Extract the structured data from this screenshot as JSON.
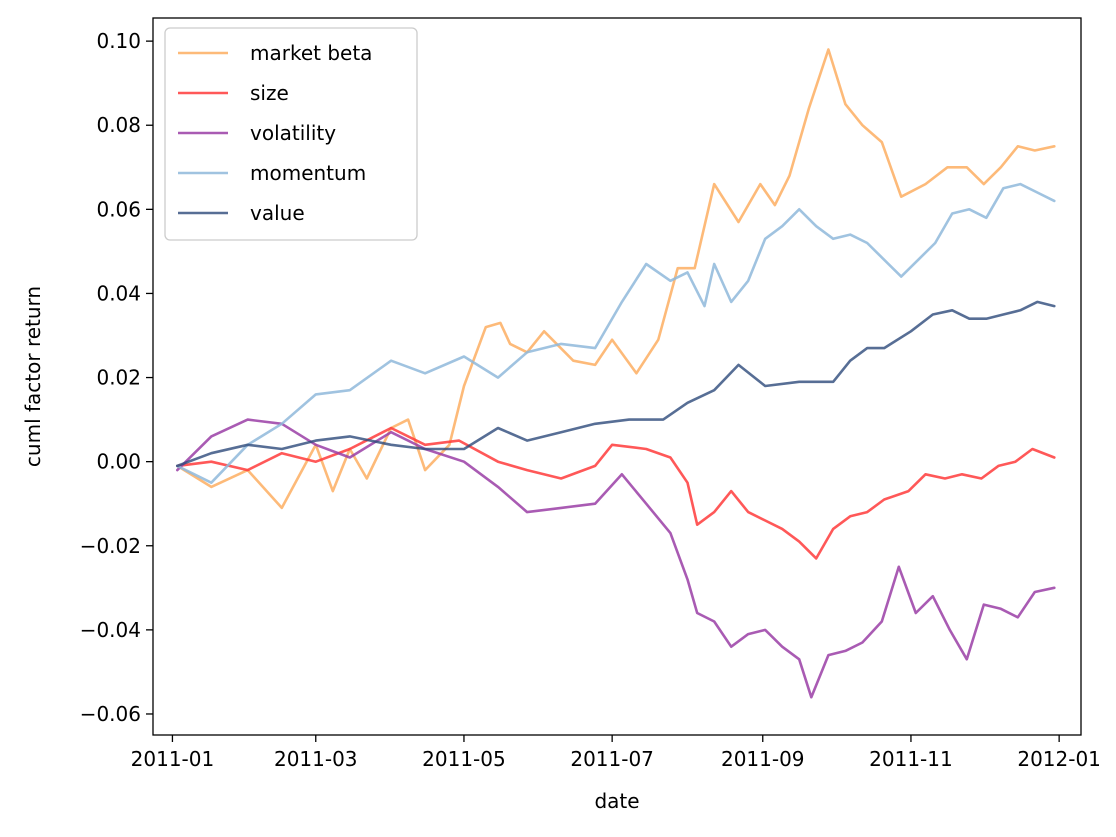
{
  "chart_data": {
    "type": "line",
    "title": "",
    "xlabel": "date",
    "ylabel": "cuml factor return",
    "xlim": [
      "2010-12-24",
      "2012-01-10"
    ],
    "ylim": [
      -0.065,
      0.1055
    ],
    "x_ticks": [
      "2011-01",
      "2011-03",
      "2011-05",
      "2011-07",
      "2011-09",
      "2011-11",
      "2012-01"
    ],
    "y_ticks": [
      -0.06,
      -0.04,
      -0.02,
      0.0,
      0.02,
      0.04,
      0.06,
      0.08,
      0.1
    ],
    "y_tick_labels": [
      "−0.06",
      "−0.04",
      "−0.02",
      "0.00",
      "0.02",
      "0.04",
      "0.06",
      "0.08",
      "0.10"
    ],
    "legend_position": "upper-left",
    "series": [
      {
        "name": "market beta",
        "color": "#fdae61",
        "opacity": 0.85,
        "points": [
          [
            "2011-01-03",
            -0.001
          ],
          [
            "2011-01-17",
            -0.006
          ],
          [
            "2011-02-01",
            -0.002
          ],
          [
            "2011-02-15",
            -0.011
          ],
          [
            "2011-03-01",
            0.004
          ],
          [
            "2011-03-08",
            -0.007
          ],
          [
            "2011-03-15",
            0.003
          ],
          [
            "2011-03-22",
            -0.004
          ],
          [
            "2011-04-01",
            0.008
          ],
          [
            "2011-04-08",
            0.01
          ],
          [
            "2011-04-15",
            -0.002
          ],
          [
            "2011-04-25",
            0.004
          ],
          [
            "2011-05-01",
            0.018
          ],
          [
            "2011-05-10",
            0.032
          ],
          [
            "2011-05-16",
            0.033
          ],
          [
            "2011-05-20",
            0.028
          ],
          [
            "2011-05-27",
            0.026
          ],
          [
            "2011-06-03",
            0.031
          ],
          [
            "2011-06-15",
            0.024
          ],
          [
            "2011-06-24",
            0.023
          ],
          [
            "2011-07-01",
            0.029
          ],
          [
            "2011-07-11",
            0.021
          ],
          [
            "2011-07-20",
            0.029
          ],
          [
            "2011-07-28",
            0.046
          ],
          [
            "2011-08-04",
            0.046
          ],
          [
            "2011-08-12",
            0.066
          ],
          [
            "2011-08-22",
            0.057
          ],
          [
            "2011-08-31",
            0.066
          ],
          [
            "2011-09-06",
            0.061
          ],
          [
            "2011-09-12",
            0.068
          ],
          [
            "2011-09-20",
            0.084
          ],
          [
            "2011-09-28",
            0.098
          ],
          [
            "2011-10-05",
            0.085
          ],
          [
            "2011-10-12",
            0.08
          ],
          [
            "2011-10-20",
            0.076
          ],
          [
            "2011-10-28",
            0.063
          ],
          [
            "2011-11-07",
            0.066
          ],
          [
            "2011-11-16",
            0.07
          ],
          [
            "2011-11-24",
            0.07
          ],
          [
            "2011-12-01",
            0.066
          ],
          [
            "2011-12-08",
            0.07
          ],
          [
            "2011-12-15",
            0.075
          ],
          [
            "2011-12-22",
            0.074
          ],
          [
            "2011-12-30",
            0.075
          ]
        ]
      },
      {
        "name": "size",
        "color": "#ff3b3b",
        "opacity": 0.85,
        "points": [
          [
            "2011-01-03",
            -0.001
          ],
          [
            "2011-01-17",
            0.0
          ],
          [
            "2011-02-01",
            -0.002
          ],
          [
            "2011-02-15",
            0.002
          ],
          [
            "2011-03-01",
            0.0
          ],
          [
            "2011-03-15",
            0.003
          ],
          [
            "2011-04-01",
            0.008
          ],
          [
            "2011-04-15",
            0.004
          ],
          [
            "2011-04-29",
            0.005
          ],
          [
            "2011-05-15",
            0.0
          ],
          [
            "2011-05-27",
            -0.002
          ],
          [
            "2011-06-10",
            -0.004
          ],
          [
            "2011-06-24",
            -0.001
          ],
          [
            "2011-07-01",
            0.004
          ],
          [
            "2011-07-15",
            0.003
          ],
          [
            "2011-07-25",
            0.001
          ],
          [
            "2011-08-01",
            -0.005
          ],
          [
            "2011-08-05",
            -0.015
          ],
          [
            "2011-08-12",
            -0.012
          ],
          [
            "2011-08-19",
            -0.007
          ],
          [
            "2011-08-26",
            -0.012
          ],
          [
            "2011-09-02",
            -0.014
          ],
          [
            "2011-09-09",
            -0.016
          ],
          [
            "2011-09-16",
            -0.019
          ],
          [
            "2011-09-23",
            -0.023
          ],
          [
            "2011-09-30",
            -0.016
          ],
          [
            "2011-10-07",
            -0.013
          ],
          [
            "2011-10-14",
            -0.012
          ],
          [
            "2011-10-21",
            -0.009
          ],
          [
            "2011-10-31",
            -0.007
          ],
          [
            "2011-11-07",
            -0.003
          ],
          [
            "2011-11-15",
            -0.004
          ],
          [
            "2011-11-22",
            -0.003
          ],
          [
            "2011-11-30",
            -0.004
          ],
          [
            "2011-12-07",
            -0.001
          ],
          [
            "2011-12-14",
            0.0
          ],
          [
            "2011-12-21",
            0.003
          ],
          [
            "2011-12-30",
            0.001
          ]
        ]
      },
      {
        "name": "volatility",
        "color": "#9a3ea6",
        "opacity": 0.85,
        "points": [
          [
            "2011-01-03",
            -0.002
          ],
          [
            "2011-01-17",
            0.006
          ],
          [
            "2011-02-01",
            0.01
          ],
          [
            "2011-02-15",
            0.009
          ],
          [
            "2011-03-01",
            0.004
          ],
          [
            "2011-03-15",
            0.001
          ],
          [
            "2011-04-01",
            0.007
          ],
          [
            "2011-04-15",
            0.003
          ],
          [
            "2011-05-01",
            0.0
          ],
          [
            "2011-05-15",
            -0.006
          ],
          [
            "2011-05-27",
            -0.012
          ],
          [
            "2011-06-10",
            -0.011
          ],
          [
            "2011-06-24",
            -0.01
          ],
          [
            "2011-07-05",
            -0.003
          ],
          [
            "2011-07-15",
            -0.01
          ],
          [
            "2011-07-25",
            -0.017
          ],
          [
            "2011-08-01",
            -0.028
          ],
          [
            "2011-08-05",
            -0.036
          ],
          [
            "2011-08-12",
            -0.038
          ],
          [
            "2011-08-19",
            -0.044
          ],
          [
            "2011-08-26",
            -0.041
          ],
          [
            "2011-09-02",
            -0.04
          ],
          [
            "2011-09-09",
            -0.044
          ],
          [
            "2011-09-16",
            -0.047
          ],
          [
            "2011-09-21",
            -0.056
          ],
          [
            "2011-09-28",
            -0.046
          ],
          [
            "2011-10-05",
            -0.045
          ],
          [
            "2011-10-12",
            -0.043
          ],
          [
            "2011-10-20",
            -0.038
          ],
          [
            "2011-10-27",
            -0.025
          ],
          [
            "2011-11-03",
            -0.036
          ],
          [
            "2011-11-10",
            -0.032
          ],
          [
            "2011-11-17",
            -0.04
          ],
          [
            "2011-11-24",
            -0.047
          ],
          [
            "2011-12-01",
            -0.034
          ],
          [
            "2011-12-08",
            -0.035
          ],
          [
            "2011-12-15",
            -0.037
          ],
          [
            "2011-12-22",
            -0.031
          ],
          [
            "2011-12-30",
            -0.03
          ]
        ]
      },
      {
        "name": "momentum",
        "color": "#8fb8da",
        "opacity": 0.85,
        "points": [
          [
            "2011-01-03",
            -0.001
          ],
          [
            "2011-01-17",
            -0.005
          ],
          [
            "2011-02-01",
            0.004
          ],
          [
            "2011-02-15",
            0.009
          ],
          [
            "2011-03-01",
            0.016
          ],
          [
            "2011-03-15",
            0.017
          ],
          [
            "2011-04-01",
            0.024
          ],
          [
            "2011-04-15",
            0.021
          ],
          [
            "2011-05-01",
            0.025
          ],
          [
            "2011-05-15",
            0.02
          ],
          [
            "2011-05-27",
            0.026
          ],
          [
            "2011-06-10",
            0.028
          ],
          [
            "2011-06-24",
            0.027
          ],
          [
            "2011-07-05",
            0.038
          ],
          [
            "2011-07-15",
            0.047
          ],
          [
            "2011-07-25",
            0.043
          ],
          [
            "2011-08-01",
            0.045
          ],
          [
            "2011-08-08",
            0.037
          ],
          [
            "2011-08-12",
            0.047
          ],
          [
            "2011-08-19",
            0.038
          ],
          [
            "2011-08-26",
            0.043
          ],
          [
            "2011-09-02",
            0.053
          ],
          [
            "2011-09-09",
            0.056
          ],
          [
            "2011-09-16",
            0.06
          ],
          [
            "2011-09-23",
            0.056
          ],
          [
            "2011-09-30",
            0.053
          ],
          [
            "2011-10-07",
            0.054
          ],
          [
            "2011-10-14",
            0.052
          ],
          [
            "2011-10-21",
            0.048
          ],
          [
            "2011-10-28",
            0.044
          ],
          [
            "2011-11-04",
            0.048
          ],
          [
            "2011-11-11",
            0.052
          ],
          [
            "2011-11-18",
            0.059
          ],
          [
            "2011-11-25",
            0.06
          ],
          [
            "2011-12-02",
            0.058
          ],
          [
            "2011-12-09",
            0.065
          ],
          [
            "2011-12-16",
            0.066
          ],
          [
            "2011-12-23",
            0.064
          ],
          [
            "2011-12-30",
            0.062
          ]
        ]
      },
      {
        "name": "value",
        "color": "#2d4a7a",
        "opacity": 0.8,
        "points": [
          [
            "2011-01-03",
            -0.001
          ],
          [
            "2011-01-17",
            0.002
          ],
          [
            "2011-02-01",
            0.004
          ],
          [
            "2011-02-15",
            0.003
          ],
          [
            "2011-03-01",
            0.005
          ],
          [
            "2011-03-15",
            0.006
          ],
          [
            "2011-04-01",
            0.004
          ],
          [
            "2011-04-15",
            0.003
          ],
          [
            "2011-05-01",
            0.003
          ],
          [
            "2011-05-15",
            0.008
          ],
          [
            "2011-05-27",
            0.005
          ],
          [
            "2011-06-10",
            0.007
          ],
          [
            "2011-06-24",
            0.009
          ],
          [
            "2011-07-08",
            0.01
          ],
          [
            "2011-07-22",
            0.01
          ],
          [
            "2011-08-01",
            0.014
          ],
          [
            "2011-08-12",
            0.017
          ],
          [
            "2011-08-22",
            0.023
          ],
          [
            "2011-09-02",
            0.018
          ],
          [
            "2011-09-16",
            0.019
          ],
          [
            "2011-09-30",
            0.019
          ],
          [
            "2011-10-07",
            0.024
          ],
          [
            "2011-10-14",
            0.027
          ],
          [
            "2011-10-21",
            0.027
          ],
          [
            "2011-11-01",
            0.031
          ],
          [
            "2011-11-10",
            0.035
          ],
          [
            "2011-11-18",
            0.036
          ],
          [
            "2011-11-25",
            0.034
          ],
          [
            "2011-12-02",
            0.034
          ],
          [
            "2011-12-09",
            0.035
          ],
          [
            "2011-12-16",
            0.036
          ],
          [
            "2011-12-23",
            0.038
          ],
          [
            "2011-12-30",
            0.037
          ]
        ]
      }
    ]
  }
}
